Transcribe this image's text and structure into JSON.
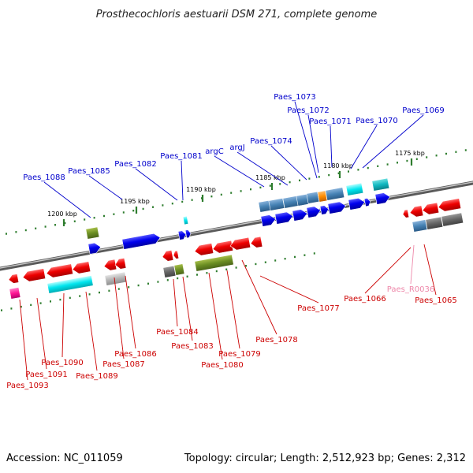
{
  "title": "Prosthecochloris aestuarii DSM 271, complete genome",
  "accession": "Accession: NC_011059",
  "summary": "Topology: circular; Length: 2,512,923 bp; Genes: 2,312",
  "colors": {
    "top_label": "#0000cc",
    "bottom_label": "#cc0000",
    "rna_label": "#ee88aa",
    "backbone": "#8a8a8a",
    "tick_mark": "#2e7d2e"
  },
  "scale_ticks": [
    {
      "label": "1200 kbp"
    },
    {
      "label": "1195 kbp"
    },
    {
      "label": "1190 kbp"
    },
    {
      "label": "1185 kbp"
    },
    {
      "label": "1180 kbp"
    },
    {
      "label": "1175 kbp"
    }
  ],
  "top_labels": [
    {
      "text": "Paes_1088"
    },
    {
      "text": "Paes_1085"
    },
    {
      "text": "Paes_1082"
    },
    {
      "text": "Paes_1081"
    },
    {
      "text": "argC"
    },
    {
      "text": "argJ"
    },
    {
      "text": "Paes_1074"
    },
    {
      "text": "Paes_1073"
    },
    {
      "text": "Paes_1072"
    },
    {
      "text": "Paes_1071"
    },
    {
      "text": "Paes_1070"
    },
    {
      "text": "Paes_1069"
    }
  ],
  "bottom_labels": [
    {
      "text": "Paes_1093"
    },
    {
      "text": "Paes_1091"
    },
    {
      "text": "Paes_1090"
    },
    {
      "text": "Paes_1089"
    },
    {
      "text": "Paes_1087"
    },
    {
      "text": "Paes_1086"
    },
    {
      "text": "Paes_1084"
    },
    {
      "text": "Paes_1083"
    },
    {
      "text": "Paes_1080"
    },
    {
      "text": "Paes_1079"
    },
    {
      "text": "Paes_1078"
    },
    {
      "text": "Paes_1077"
    },
    {
      "text": "Paes_1066"
    },
    {
      "text": "Paes_R0036"
    },
    {
      "text": "Paes_1065"
    }
  ]
}
